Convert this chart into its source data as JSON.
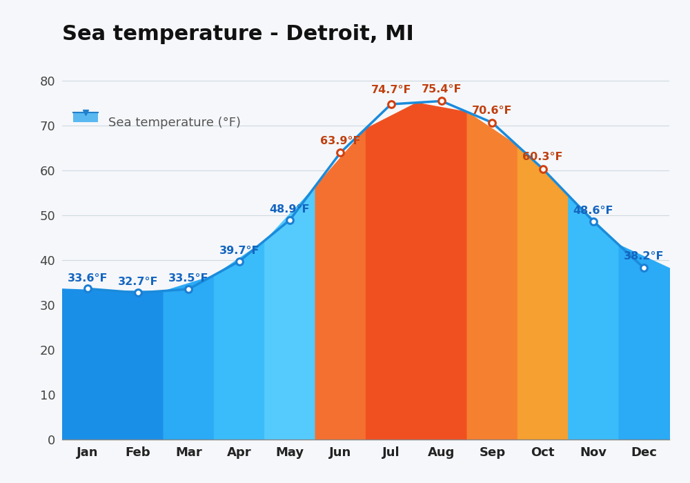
{
  "title": "Sea temperature - Detroit, MI",
  "legend_label": "Sea temperature (°F)",
  "months": [
    "Jan",
    "Feb",
    "Mar",
    "Apr",
    "May",
    "Jun",
    "Jul",
    "Aug",
    "Sep",
    "Oct",
    "Nov",
    "Dec"
  ],
  "values": [
    33.6,
    32.7,
    33.5,
    39.7,
    48.9,
    63.9,
    74.7,
    75.4,
    70.6,
    60.3,
    48.6,
    38.2
  ],
  "bar_colors": [
    "#1a8fe8",
    "#1a8fe8",
    "#2baaf5",
    "#3bbcfa",
    "#55cafc",
    "#f47030",
    "#f05020",
    "#f05020",
    "#f58030",
    "#f5a030",
    "#3bbcfa",
    "#2baaf5"
  ],
  "label_colors": [
    "#1565c0",
    "#1565c0",
    "#1565c0",
    "#1565c0",
    "#1565c0",
    "#c04010",
    "#c04010",
    "#c04010",
    "#c04010",
    "#c04010",
    "#1565c0",
    "#1565c0"
  ],
  "line_color": "#1a8bdb",
  "dot_color_cool": "#1a7fd4",
  "dot_color_warm": "#d04010",
  "ylim": [
    0,
    85
  ],
  "yticks": [
    0,
    10,
    20,
    30,
    40,
    50,
    60,
    70,
    80
  ],
  "background_color": "#f5f7fa",
  "title_fontsize": 22,
  "label_fontsize": 11.5,
  "tick_fontsize": 13,
  "grid_color": "#d0d8e0"
}
